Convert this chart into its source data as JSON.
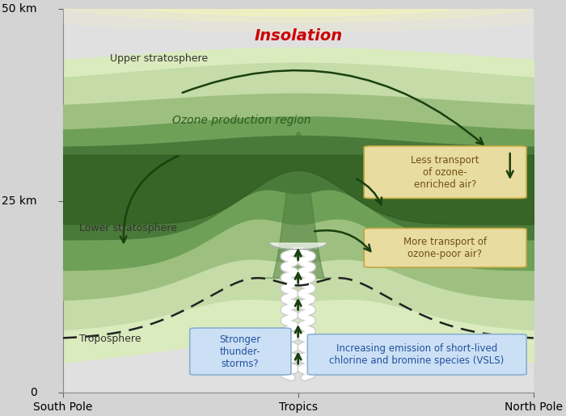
{
  "bg_color": "#d4d4d4",
  "plot_bg": "#e0e0e0",
  "title": "Insolation",
  "title_color": "#cc0000",
  "ylim": [
    0,
    50
  ],
  "xlim": [
    0,
    10
  ],
  "ytick_positions": [
    0,
    25,
    50
  ],
  "xtick_labels": [
    "South Pole",
    "Tropics",
    "North Pole"
  ],
  "xtick_positions": [
    0,
    5,
    10
  ],
  "green_dark": "#2d5a1e",
  "green_mid": "#4a7a3a",
  "green_light": "#6ea058",
  "green_lighter": "#9dc080",
  "green_lightest": "#c5dca8",
  "green_bg": "#daebbe",
  "arrow_color": "#1a4010",
  "box_blue_bg": "#cce0f5",
  "box_blue_border": "#8ab0d0",
  "box_tan_bg": "#e8dca0",
  "box_tan_border": "#c0a840",
  "box_text_blue": "#2050a0",
  "box_text_tan": "#705010",
  "label_color": "#333333",
  "dashed_color": "#222222",
  "sun_yellow": "#ffff00",
  "sun_pale": "#ffffaa"
}
